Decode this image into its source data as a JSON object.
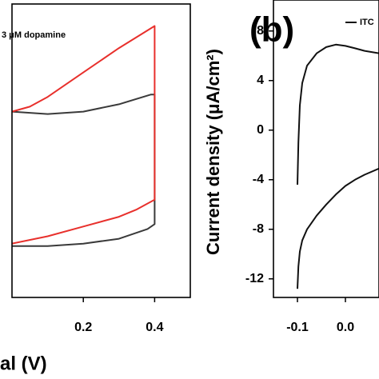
{
  "chart_data": [
    {
      "type": "line",
      "xlabel": "al (V)",
      "annotation": "3 μM dopamine",
      "xlim": [
        0,
        0.5
      ],
      "xticks": [
        0.2,
        0.4
      ],
      "ylim": [
        -60,
        60
      ],
      "yticks": [],
      "series": [
        {
          "color": "#3a3a3a",
          "x": [
            0,
            0.1,
            0.2,
            0.3,
            0.39,
            0.4,
            0.4,
            0.38,
            0.3,
            0.2,
            0.1,
            0
          ],
          "values": [
            16,
            15,
            16,
            19,
            23,
            23,
            -30,
            -32,
            -36,
            -38,
            -39,
            -39
          ]
        },
        {
          "color": "#e8302c",
          "x": [
            0,
            0.05,
            0.1,
            0.2,
            0.3,
            0.4,
            0.4,
            0.35,
            0.3,
            0.2,
            0.1,
            0
          ],
          "values": [
            16,
            18,
            22,
            32,
            42,
            51,
            -20,
            -24,
            -27,
            -31,
            -35,
            -38
          ]
        }
      ]
    },
    {
      "type": "line",
      "title": "(b)",
      "ylabel": "Current density (μA/cm²)",
      "xlim": [
        -0.15,
        0.07
      ],
      "xticks": [
        -0.1,
        {
          "value": 0,
          "label": "0.0"
        }
      ],
      "ylim": [
        -13.5,
        10.5
      ],
      "yticks": [
        8,
        4,
        0,
        -4,
        -8,
        -12
      ],
      "series": [
        {
          "name": "ITC",
          "color": "#111111",
          "x": [
            -0.1,
            -0.098,
            -0.095,
            -0.09,
            -0.08,
            -0.06,
            -0.04,
            -0.02,
            0,
            0.02,
            0.04,
            0.07,
            null,
            -0.1,
            -0.098,
            -0.095,
            -0.09,
            -0.08,
            -0.06,
            -0.04,
            -0.02,
            0,
            0.02,
            0.04,
            0.07
          ],
          "values": [
            -4.4,
            -1,
            2,
            3.8,
            5.2,
            6.2,
            6.7,
            6.9,
            6.8,
            6.6,
            6.4,
            6.2,
            null,
            -12.8,
            -11,
            -9.8,
            -8.9,
            -8,
            -6.9,
            -6,
            -5.2,
            -4.5,
            -4,
            -3.6,
            -3.1
          ]
        }
      ]
    }
  ]
}
